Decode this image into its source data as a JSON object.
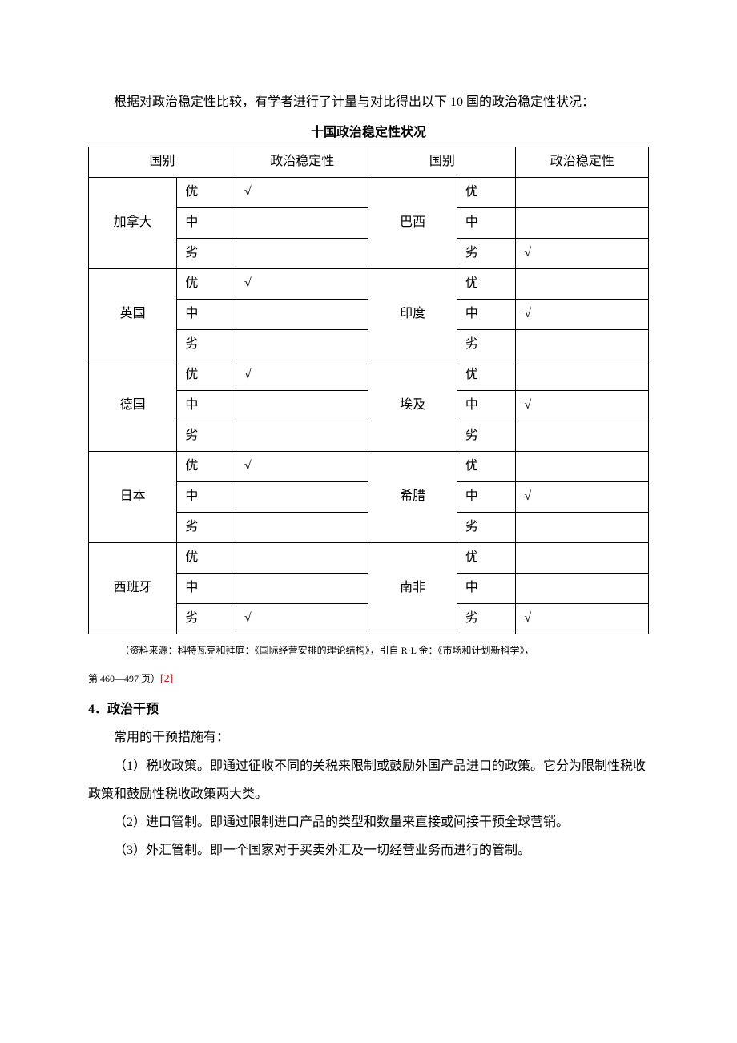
{
  "intro": "根据对政治稳定性比较，有学者进行了计量与对比得出以下 10 国的政治稳定性状况：",
  "table_title": "十国政治稳定性状况",
  "headers": {
    "country": "国别",
    "stability": "政治稳定性"
  },
  "levels": {
    "excellent": "优",
    "medium": "中",
    "poor": "劣"
  },
  "checkmark": "√",
  "countries_left": [
    {
      "name": "加拿大",
      "checks": [
        "√",
        "",
        ""
      ]
    },
    {
      "name": "英国",
      "checks": [
        "√",
        "",
        ""
      ]
    },
    {
      "name": "德国",
      "checks": [
        "√",
        "",
        ""
      ]
    },
    {
      "name": "日本",
      "checks": [
        "√",
        "",
        ""
      ]
    },
    {
      "name": "西班牙",
      "checks": [
        "",
        "",
        "√"
      ]
    }
  ],
  "countries_right": [
    {
      "name": "巴西",
      "checks": [
        "",
        "",
        "√"
      ]
    },
    {
      "name": "印度",
      "checks": [
        "",
        "√",
        ""
      ]
    },
    {
      "name": "埃及",
      "checks": [
        "",
        "√",
        ""
      ]
    },
    {
      "name": "希腊",
      "checks": [
        "",
        "√",
        ""
      ]
    },
    {
      "name": "南非",
      "checks": [
        "",
        "",
        "√"
      ]
    }
  ],
  "source_line1": "（资料来源：科特瓦克和拜庭：《国际经营安排的理论结构》，引自 R·L 金：《市场和计划新科学》，",
  "source_line2_prefix": "第 460—497 页）",
  "ref_marker": "[2]",
  "section": {
    "number": "4．",
    "title": "政治干预"
  },
  "body": {
    "intro": "常用的干预措施有：",
    "item1": "（1）税收政策。即通过征收不同的关税来限制或鼓励外国产品进口的政策。它分为限制性税收政策和鼓励性税收政策两大类。",
    "item2": "（2）进口管制。即通过限制进口产品的类型和数量来直接或间接干预全球营销。",
    "item3": "（3）外汇管制。即一个国家对于买卖外汇及一切经营业务而进行的管制。"
  },
  "colors": {
    "text": "#000000",
    "background": "#ffffff",
    "border": "#000000",
    "ref": "#ff0000"
  }
}
